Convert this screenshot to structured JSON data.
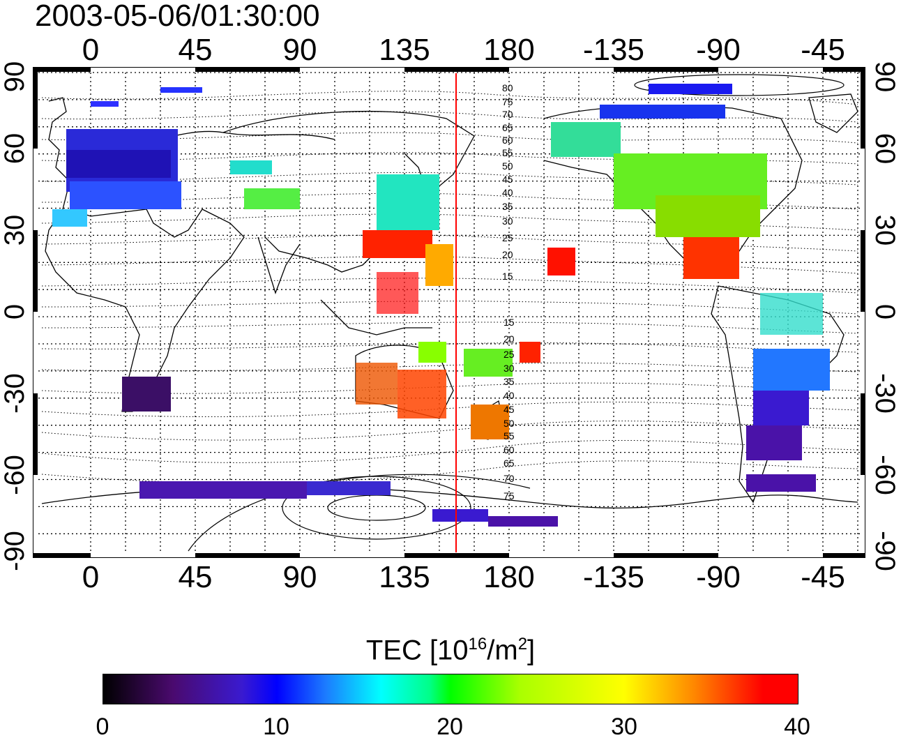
{
  "title": "2003-05-06/01:30:00",
  "map": {
    "top_lon_labels": [
      "0",
      "45",
      "90",
      "135",
      "180",
      "-135",
      "-90",
      "-45"
    ],
    "bottom_lon_labels": [
      "0",
      "45",
      "90",
      "135",
      "180",
      "-135",
      "-90",
      "-45"
    ],
    "left_lat_labels": [
      "90",
      "60",
      "30",
      "0",
      "-30",
      "-60",
      "-90"
    ],
    "right_lat_labels": [
      "90",
      "60",
      "30",
      "0",
      "-30",
      "-60",
      "-90"
    ],
    "contour_labels_north": [
      "80",
      "75",
      "70",
      "65",
      "60",
      "55",
      "50",
      "45",
      "40",
      "35",
      "30",
      "25",
      "20",
      "15"
    ],
    "contour_labels_south": [
      "15",
      "20",
      "25",
      "30",
      "35",
      "40",
      "45",
      "50",
      "55",
      "60",
      "65",
      "70",
      "75"
    ],
    "colors": {
      "red_line": "#ff0000",
      "grid": "#000000"
    }
  },
  "colorbar": {
    "label_main": "TEC  [10",
    "label_exp": "16",
    "label_mid": "/m",
    "label_exp2": "2",
    "label_end": "]",
    "ticks": [
      "0",
      "10",
      "20",
      "30",
      "40"
    ]
  }
}
